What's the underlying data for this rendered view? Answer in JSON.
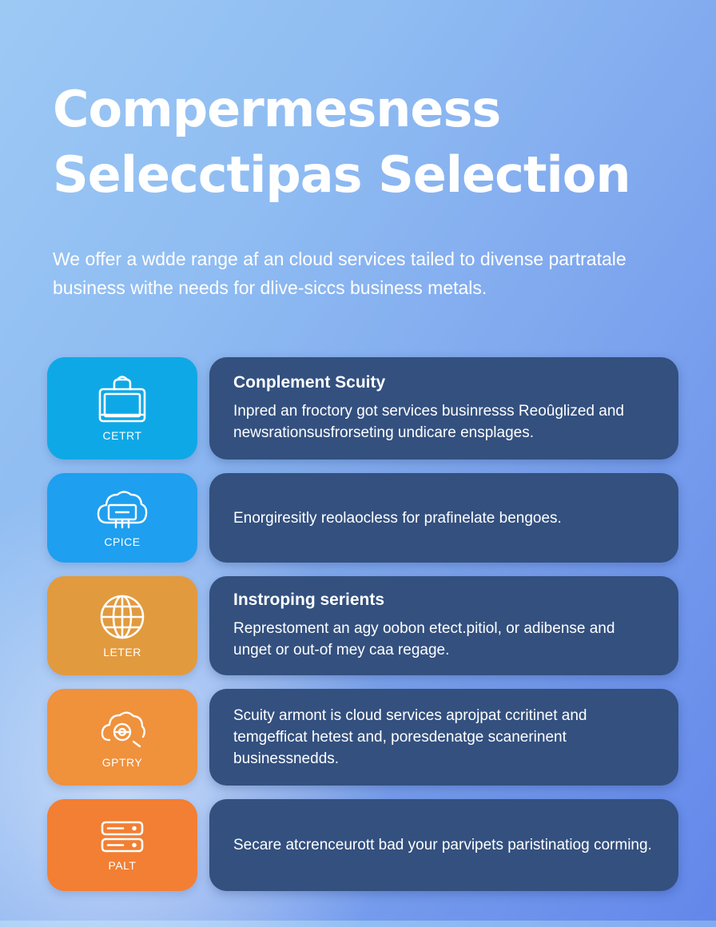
{
  "hero": {
    "title_line1": "Compermesness",
    "title_line2": "Seleсctipas Selection",
    "subtitle": "We offer a wdde range af an cloud services tailed to divense partratale business withe needs for dlive-siccs business metals."
  },
  "services": [
    {
      "icon": "server-box-icon",
      "tile_label": "CETRT",
      "tile_color": "#0fa8e6",
      "title": "Conplement Scuity",
      "description": "Inpred an froctory got services businresss Reoûglized and newsrationsusfrorseting undicare ensplages."
    },
    {
      "icon": "cloud-network-icon",
      "tile_label": "CPICE",
      "tile_color": "#1f9fef",
      "title": "",
      "description": "Enorgiresitly reolaocless for prafinelate bengoes."
    },
    {
      "icon": "globe-icon",
      "tile_label": "LETER",
      "tile_color": "#e29a3e",
      "title": "Instroping serients",
      "description": "Represtoment an agy oobon etect.pitiol, or adibense and unget or out-of mey caa regage."
    },
    {
      "icon": "cloud-gear-icon",
      "tile_label": "GPTRY",
      "tile_color": "#f0913c",
      "title": "",
      "description": "Scuity armont is cloud services aprojpat ccritinet and temgefficat hetest and, poresdenatge scanerinent businessnedds."
    },
    {
      "icon": "server-rack-icon",
      "tile_label": "PALT",
      "tile_color": "#f27f33",
      "title": "",
      "description": "Secare atcrenceurott bad your parvipets paristinatiog corming."
    }
  ]
}
